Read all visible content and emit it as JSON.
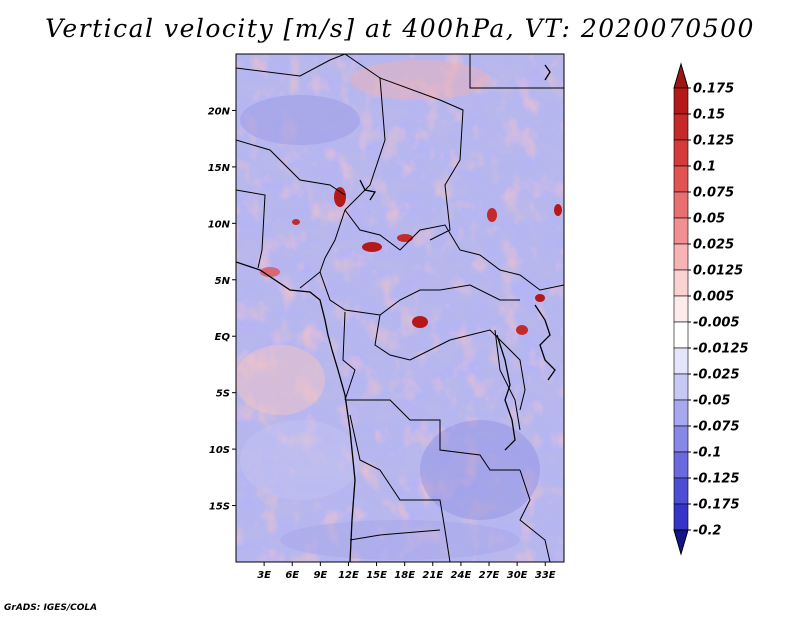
{
  "title": "Vertical velocity [m/s] at 400hPa, VT: 2020070500",
  "credit": "GrADS: IGES/COLA",
  "map": {
    "lon_range": [
      0,
      35
    ],
    "lat_range": [
      -20,
      25
    ],
    "lat_ticks": [
      {
        "value": 20,
        "label": "20N"
      },
      {
        "value": 15,
        "label": "15N"
      },
      {
        "value": 10,
        "label": "10N"
      },
      {
        "value": 5,
        "label": "5N"
      },
      {
        "value": 0,
        "label": "EQ"
      },
      {
        "value": -5,
        "label": "5S"
      },
      {
        "value": -10,
        "label": "10S"
      },
      {
        "value": -15,
        "label": "15S"
      }
    ],
    "lon_ticks": [
      {
        "value": 3,
        "label": "3E"
      },
      {
        "value": 6,
        "label": "6E"
      },
      {
        "value": 9,
        "label": "9E"
      },
      {
        "value": 12,
        "label": "12E"
      },
      {
        "value": 15,
        "label": "15E"
      },
      {
        "value": 18,
        "label": "18E"
      },
      {
        "value": 21,
        "label": "21E"
      },
      {
        "value": 24,
        "label": "24E"
      },
      {
        "value": 27,
        "label": "27E"
      },
      {
        "value": 30,
        "label": "30E"
      },
      {
        "value": 33,
        "label": "33E"
      }
    ]
  },
  "colorbar": {
    "levels": [
      {
        "label": "0.175",
        "color": "#b51818"
      },
      {
        "label": "0.15",
        "color": "#c42a2a"
      },
      {
        "label": "0.125",
        "color": "#d43c3c"
      },
      {
        "label": "0.1",
        "color": "#e05454"
      },
      {
        "label": "0.075",
        "color": "#e87070"
      },
      {
        "label": "0.05",
        "color": "#f09090"
      },
      {
        "label": "0.025",
        "color": "#f6b4b4"
      },
      {
        "label": "0.0125",
        "color": "#fad2d2"
      },
      {
        "label": "0.005",
        "color": "#fdeaea"
      },
      {
        "label": "-0.005",
        "color": "#ffffff"
      },
      {
        "label": "-0.0125",
        "color": "#e4e4fa"
      },
      {
        "label": "-0.025",
        "color": "#c8c8f4"
      },
      {
        "label": "-0.05",
        "color": "#a8a8ee"
      },
      {
        "label": "-0.075",
        "color": "#8888e6"
      },
      {
        "label": "-0.1",
        "color": "#6a6ade"
      },
      {
        "label": "-0.125",
        "color": "#4e4ed4"
      },
      {
        "label": "-0.175",
        "color": "#3434c6"
      },
      {
        "label": "-0.2",
        "color": "#2020b0"
      }
    ],
    "top_cap_color": "#a01414",
    "bottom_cap_color": "#14148c"
  }
}
